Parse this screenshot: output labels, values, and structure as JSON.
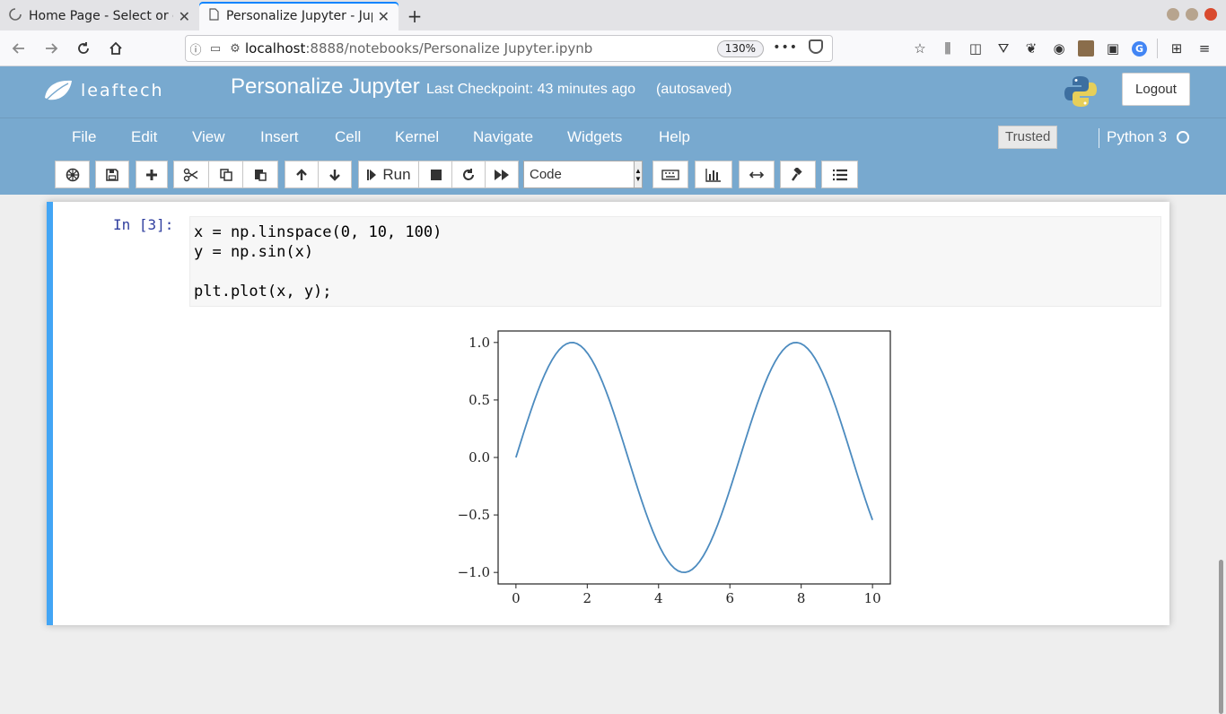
{
  "browser": {
    "tabs": [
      {
        "title": "Home Page - Select or cr",
        "active": false
      },
      {
        "title": "Personalize Jupyter - Jup",
        "active": true
      }
    ],
    "url_host": "localhost",
    "url_path": ":8888/notebooks/Personalize Jupyter.ipynb",
    "zoom": "130%"
  },
  "header": {
    "logo_text": "leaftech",
    "notebook_name": "Personalize Jupyter",
    "checkpoint": "Last Checkpoint: 43 minutes ago",
    "autosave": "(autosaved)",
    "logout": "Logout"
  },
  "menu": {
    "items": [
      "File",
      "Edit",
      "View",
      "Insert",
      "Cell",
      "Kernel",
      "Navigate",
      "Widgets",
      "Help"
    ],
    "trusted": "Trusted",
    "kernel": "Python 3"
  },
  "toolbar": {
    "run_label": "Run",
    "cell_type": "Code"
  },
  "cell": {
    "prompt": "In [3]:",
    "code_lines": [
      "x = np.linspace(0, 10, 100)",
      "y = np.sin(x)",
      "",
      "plt.plot(x, y);"
    ]
  },
  "chart_data": {
    "type": "line",
    "title": "",
    "xlabel": "",
    "ylabel": "",
    "xlim": [
      -0.5,
      10.5
    ],
    "ylim": [
      -1.1,
      1.1
    ],
    "xticks": [
      0,
      2,
      4,
      6,
      8,
      10
    ],
    "yticks": [
      -1.0,
      -0.5,
      0.0,
      0.5,
      1.0
    ],
    "xtick_labels": [
      "0",
      "2",
      "4",
      "6",
      "8",
      "10"
    ],
    "ytick_labels": [
      "−1.0",
      "−0.5",
      "0.0",
      "0.5",
      "1.0"
    ],
    "series": [
      {
        "function": "sin",
        "x_start": 0,
        "x_end": 10,
        "num_points": 100,
        "color": "#4c8bbf"
      }
    ],
    "grid": false
  }
}
